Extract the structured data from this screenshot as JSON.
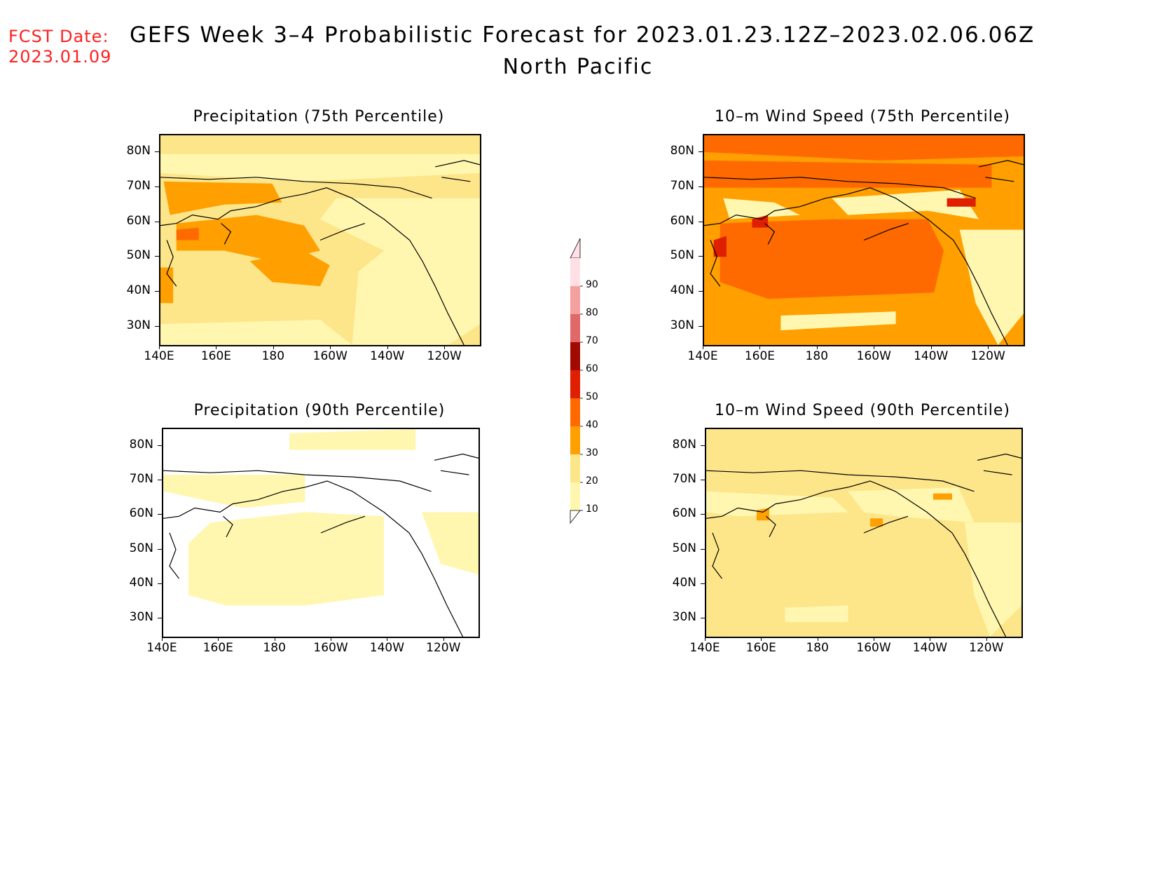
{
  "header": {
    "fcst_label": "FCST Date:",
    "fcst_date": "2023.01.09",
    "title": "GEFS Week 3–4 Probabilistic Forecast for 2023.01.23.12Z–2023.02.06.06Z",
    "region": "North Pacific"
  },
  "panels": [
    {
      "id": "precip75",
      "title": "Precipitation (75th Percentile)",
      "base": "#fde68a"
    },
    {
      "id": "wind75",
      "title": "10–m Wind Speed (75th Percentile)",
      "base": "#ff9f00"
    },
    {
      "id": "precip90",
      "title": "Precipitation (90th Percentile)",
      "base": "#ffffff"
    },
    {
      "id": "wind90",
      "title": "10–m Wind Speed (90th Percentile)",
      "base": "#fde68a"
    }
  ],
  "axes": {
    "lat_ticks": [
      "80N",
      "70N",
      "60N",
      "50N",
      "40N",
      "30N"
    ],
    "lon_ticks": [
      "140E",
      "160E",
      "180",
      "160W",
      "140W",
      "120W"
    ]
  },
  "colorbar": {
    "levels": [
      "90",
      "80",
      "70",
      "60",
      "50",
      "40",
      "30",
      "20",
      "10"
    ],
    "colors": {
      "10": "#fff7b0",
      "20": "#fde68a",
      "30": "#ff9f00",
      "40": "#ff6a00",
      "50": "#e01e00",
      "60": "#a00a00",
      "70": "#e06868",
      "80": "#f4a0a0",
      "90": "#ffe0e6"
    }
  }
}
